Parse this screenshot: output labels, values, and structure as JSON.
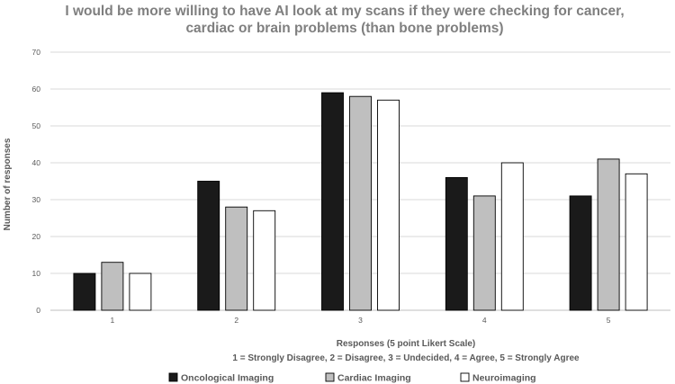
{
  "chart_data": {
    "type": "bar",
    "title_lines": [
      "I would be more willing to have AI look at my scans if they were checking for cancer,",
      "cardiac or brain problems (than bone problems)"
    ],
    "ylabel": "Number of responses",
    "xlabel_lines": [
      "Responses (5 point Likert Scale)",
      "1 = Strongly Disagree, 2 = Disagree, 3 = Undecided, 4 = Agree, 5 = Strongly Agree"
    ],
    "categories": [
      "1",
      "2",
      "3",
      "4",
      "5"
    ],
    "ylim": [
      0,
      70
    ],
    "yticks": [
      0,
      10,
      20,
      30,
      40,
      50,
      60,
      70
    ],
    "grid": true,
    "legend_position": "bottom",
    "series": [
      {
        "name": "Oncological Imaging",
        "values": [
          10,
          35,
          59,
          36,
          31
        ],
        "color": "#1a1a1a",
        "stroke": "#000000"
      },
      {
        "name": "Cardiac Imaging",
        "values": [
          13,
          28,
          58,
          31,
          41
        ],
        "color": "#bfbfbf",
        "stroke": "#000000"
      },
      {
        "name": "Neuroimaging",
        "values": [
          10,
          27,
          57,
          40,
          37
        ],
        "color": "#ffffff",
        "stroke": "#000000"
      }
    ]
  }
}
